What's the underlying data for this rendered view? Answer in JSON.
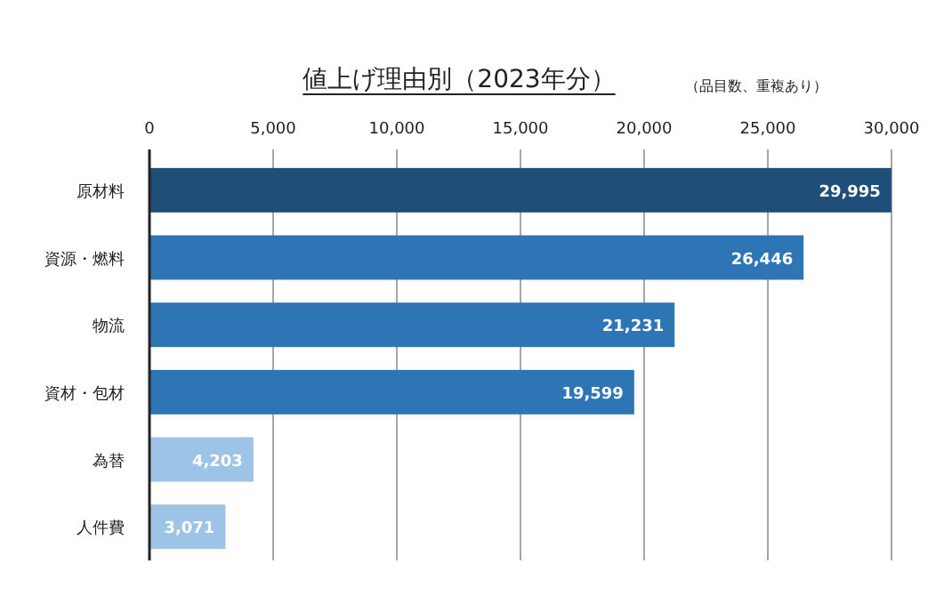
{
  "chart_data": {
    "type": "bar",
    "orientation": "horizontal",
    "title": "値上げ理由別（2023年分）",
    "subtitle": "（品目数、重複あり）",
    "categories": [
      "原材料",
      "資源・燃料",
      "物流",
      "資材・包材",
      "為替",
      "人件費"
    ],
    "values": [
      29995,
      26446,
      21231,
      19599,
      4203,
      3071
    ],
    "value_labels": [
      "29,995",
      "26,446",
      "21,231",
      "19,599",
      "4,203",
      "3,071"
    ],
    "colors": [
      "#1f4e79",
      "#2e75b6",
      "#2e75b6",
      "#2e75b6",
      "#9dc3e6",
      "#9dc3e6"
    ],
    "xlim": [
      0,
      30000
    ],
    "xticks": [
      0,
      {
        "value": 5000,
        "label": "5,000"
      },
      {
        "value": 10000,
        "label": "10,000"
      },
      {
        "value": 15000,
        "label": "15,000"
      },
      {
        "value": 20000,
        "label": "20,000"
      },
      {
        "value": 25000,
        "label": "25,000"
      },
      {
        "value": 30000,
        "label": "30,000"
      }
    ],
    "grid": "x"
  }
}
